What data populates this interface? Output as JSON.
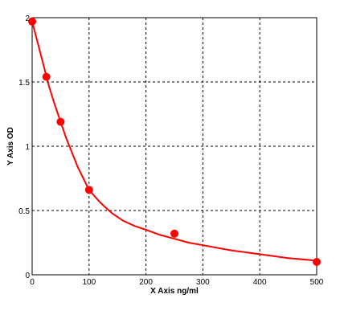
{
  "chart_data": {
    "type": "scatter",
    "xlabel": "X Axis ng/ml",
    "ylabel": "Y Axis OD",
    "xlim": [
      0,
      500
    ],
    "ylim": [
      0,
      2
    ],
    "x_ticks": [
      0,
      100,
      200,
      300,
      400,
      500
    ],
    "x_tick_labels": [
      "0",
      "100",
      "200",
      "300",
      "400",
      "500"
    ],
    "y_ticks": [
      0,
      0.5,
      1,
      1.5,
      2
    ],
    "y_tick_labels": [
      "0",
      "0.5",
      "1",
      "1.5",
      "2"
    ],
    "grid": true,
    "grid_style": "dashed",
    "series": [
      {
        "kind": "points",
        "color": "#ff0000",
        "x": [
          0,
          25,
          50,
          100,
          250,
          500
        ],
        "y": [
          1.97,
          1.54,
          1.19,
          0.66,
          0.32,
          0.1
        ]
      },
      {
        "kind": "fit-curve",
        "color": "#ff0000",
        "x": [
          0,
          10,
          20,
          30,
          40,
          50,
          60,
          70,
          80,
          90,
          100,
          120,
          140,
          160,
          180,
          200,
          225,
          250,
          275,
          300,
          350,
          400,
          450,
          500
        ],
        "y": [
          1.97,
          1.8,
          1.63,
          1.46,
          1.32,
          1.19,
          1.06,
          0.95,
          0.84,
          0.75,
          0.66,
          0.56,
          0.48,
          0.42,
          0.38,
          0.35,
          0.31,
          0.28,
          0.25,
          0.23,
          0.19,
          0.16,
          0.13,
          0.11
        ]
      }
    ]
  }
}
